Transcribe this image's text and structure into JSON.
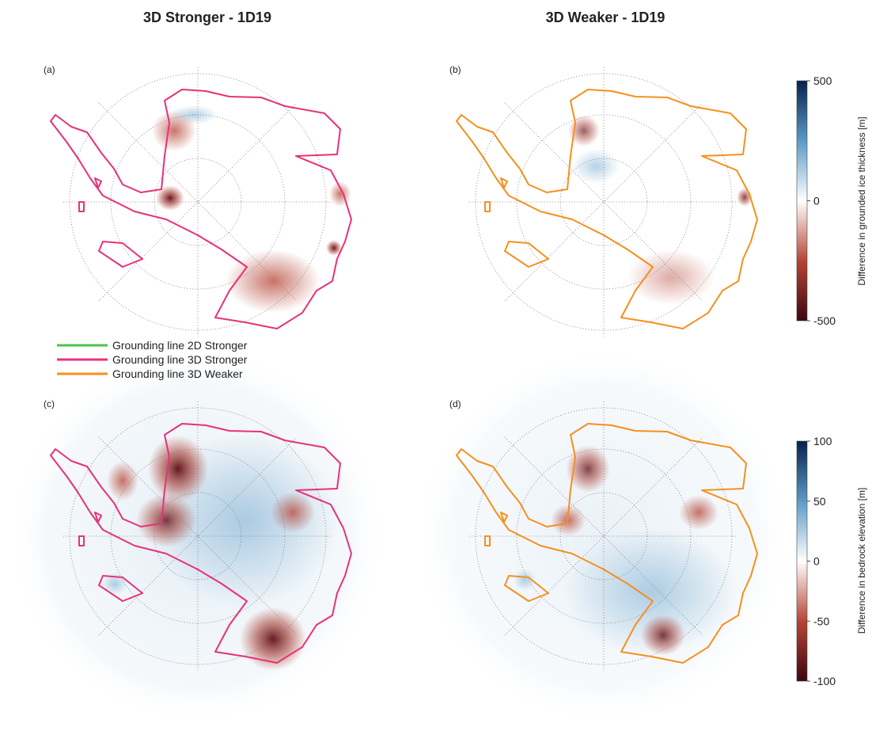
{
  "columns": [
    "3D Stronger - 1D19",
    "3D Weaker - 1D19"
  ],
  "panels": [
    "(a)",
    "(b)",
    "(c)",
    "(d)"
  ],
  "legend": [
    {
      "name": "Grounding line 2D Stronger",
      "color": "#4cc24a"
    },
    {
      "name": "Grounding line 3D Stronger",
      "color": "#e8317a"
    },
    {
      "name": "Grounding line 3D Weaker",
      "color": "#f5901e"
    }
  ],
  "colorbars": [
    {
      "label": "Difference in grounded ice thickness [m]",
      "lim": [
        -500,
        500
      ],
      "ticks": [
        500,
        0,
        -500
      ],
      "colors": [
        "#3d0710",
        "#b64536",
        "#ffffff",
        "#5b9ac6",
        "#07214d"
      ]
    },
    {
      "label": "Difference in bedrock elevation [m]",
      "lim": [
        -100,
        100
      ],
      "ticks": [
        100,
        50,
        0,
        -50,
        -100
      ],
      "colors": [
        "#3d0710",
        "#b64536",
        "#ffffff",
        "#5b9ac6",
        "#07214d"
      ]
    }
  ]
}
